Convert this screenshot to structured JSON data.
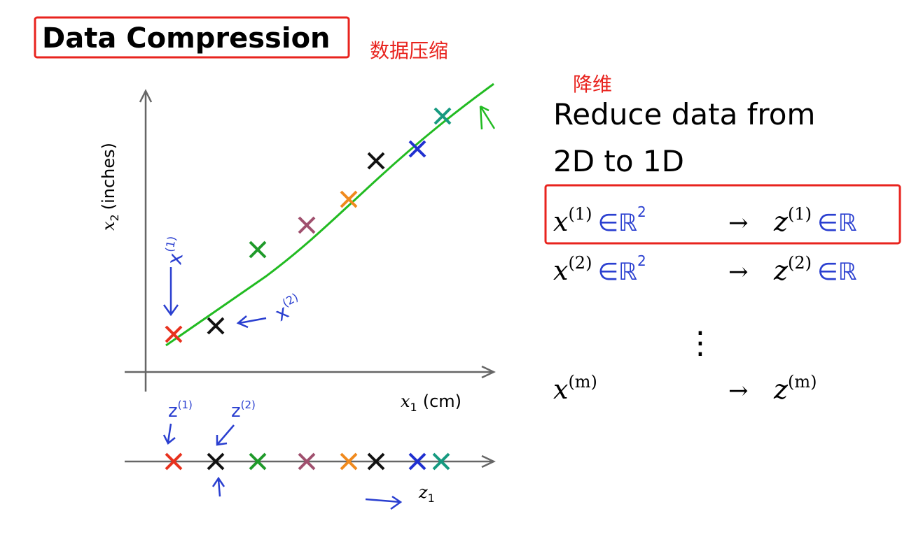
{
  "header": {
    "title": "Data Compression",
    "note_zh": "数据压缩"
  },
  "side": {
    "note_zh": "降维",
    "heading_lines": [
      "Reduce data from",
      "2D to 1D"
    ]
  },
  "plot": {
    "y_label": {
      "var": "x",
      "sub": "2",
      "unit": "(inches)"
    },
    "x_label": {
      "var": "x",
      "sub": "1",
      "unit": "(cm)"
    },
    "z_label": {
      "var": "z",
      "sub": "1"
    },
    "handwritten": [
      {
        "var": "x",
        "sup": "(1)"
      },
      {
        "var": "x",
        "sup": "(2)"
      },
      {
        "var": "z",
        "sup": "(1)"
      },
      {
        "var": "z",
        "sup": "(2)"
      }
    ]
  },
  "mapping": {
    "rows": [
      {
        "x": "x",
        "x_sup": "(1)",
        "x_space": "∈ℝ",
        "x_space_sup": "2",
        "arrow": "→",
        "z": "z",
        "z_sup": "(1)",
        "z_space": "∈ℝ"
      },
      {
        "x": "x",
        "x_sup": "(2)",
        "x_space": "∈ℝ",
        "x_space_sup": "2",
        "arrow": "→",
        "z": "z",
        "z_sup": "(2)",
        "z_space": "∈ℝ"
      },
      {
        "x": "x",
        "x_sup": "(m)",
        "arrow": "→",
        "z": "z",
        "z_sup": "(m)"
      }
    ],
    "ellipsis": "⋮"
  }
}
